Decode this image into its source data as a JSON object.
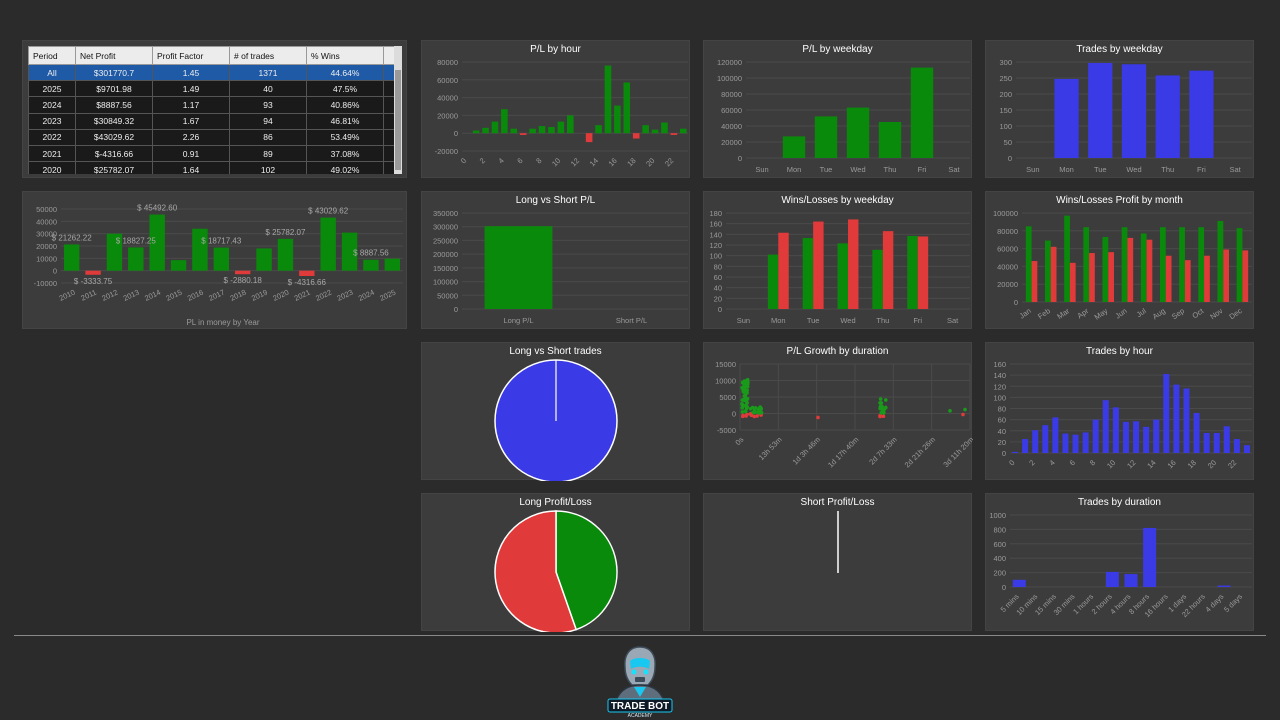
{
  "colors": {
    "green": "#0a8a0a",
    "red": "#e03a3a",
    "blue": "#3a3ae6",
    "bg": "#2b2b2b",
    "panel": "#3c3c3c"
  },
  "table": {
    "headers": [
      "Period",
      "Net Profit",
      "Profit Factor",
      "# of trades",
      "% Wins"
    ],
    "rows": [
      [
        "All",
        "$301770.7",
        "1.45",
        "1371",
        "44.64%"
      ],
      [
        "2025",
        "$9701.98",
        "1.49",
        "40",
        "47.5%"
      ],
      [
        "2024",
        "$8887.56",
        "1.17",
        "93",
        "40.86%"
      ],
      [
        "2023",
        "$30849.32",
        "1.67",
        "94",
        "46.81%"
      ],
      [
        "2022",
        "$43029.62",
        "2.26",
        "86",
        "53.49%"
      ],
      [
        "2021",
        "$-4316.66",
        "0.91",
        "89",
        "37.08%"
      ],
      [
        "2020",
        "$25782.07",
        "1.64",
        "102",
        "49.02%"
      ]
    ]
  },
  "logo": {
    "text": "TRADE BOT",
    "sub": "ACADEMY"
  },
  "chart_data": [
    {
      "id": "pl_year",
      "type": "bar",
      "title": "",
      "xlabel": "PL in money by Year",
      "categories": [
        "2010",
        "2011",
        "2012",
        "2013",
        "2014",
        "2015",
        "2016",
        "2017",
        "2018",
        "2019",
        "2020",
        "2021",
        "2022",
        "2023",
        "2024",
        "2025"
      ],
      "values": [
        21262.22,
        -3333.75,
        30000,
        18827.25,
        45492.6,
        8500,
        34000,
        18717.43,
        -2880.18,
        18000,
        25782.07,
        -4316.66,
        43029.62,
        30849.32,
        8887.56,
        9701.98
      ],
      "yticks": [
        50000,
        40000,
        30000,
        20000,
        10000,
        0,
        -10000
      ],
      "ylim": [
        -10000,
        50000
      ],
      "labels": [
        {
          "i": 0,
          "text": "$ 21262.22"
        },
        {
          "i": 1,
          "text": "$ -3333.75"
        },
        {
          "i": 3,
          "text": "$ 18827.25"
        },
        {
          "i": 4,
          "text": "$ 45492.60"
        },
        {
          "i": 7,
          "text": "$ 18717.43"
        },
        {
          "i": 8,
          "text": "$ -2880.18"
        },
        {
          "i": 10,
          "text": "$ 25782.07"
        },
        {
          "i": 11,
          "text": "$ -4316.66"
        },
        {
          "i": 12,
          "text": "$ 43029.62"
        },
        {
          "i": 14,
          "text": "$ 8887.56"
        }
      ]
    },
    {
      "id": "pl_hour",
      "type": "bar",
      "title": "P/L by hour",
      "categories": [
        "0",
        "1",
        "2",
        "3",
        "4",
        "5",
        "6",
        "7",
        "8",
        "9",
        "10",
        "11",
        "12",
        "13",
        "14",
        "15",
        "16",
        "17",
        "18",
        "19",
        "20",
        "21",
        "22",
        "23"
      ],
      "xticks": [
        "0",
        "2",
        "4",
        "6",
        "8",
        "10",
        "12",
        "14",
        "16",
        "18",
        "20",
        "22"
      ],
      "values": [
        0,
        3000,
        6000,
        13000,
        27000,
        5000,
        -2000,
        5000,
        8000,
        7000,
        13000,
        20000,
        0,
        -10000,
        9000,
        76000,
        31000,
        57000,
        -6000,
        9000,
        4000,
        12000,
        -2000,
        5000
      ],
      "yticks": [
        80000,
        60000,
        40000,
        20000,
        0,
        -20000
      ],
      "ylim": [
        -20000,
        80000
      ]
    },
    {
      "id": "pl_weekday",
      "type": "bar",
      "title": "P/L by weekday",
      "categories": [
        "Sun",
        "Mon",
        "Tue",
        "Wed",
        "Thu",
        "Fri",
        "Sat"
      ],
      "values": [
        0,
        27000,
        52000,
        63000,
        45000,
        113000,
        0
      ],
      "yticks": [
        120000,
        100000,
        80000,
        60000,
        40000,
        20000,
        0
      ],
      "ylim": [
        0,
        120000
      ]
    },
    {
      "id": "trades_weekday",
      "type": "bar",
      "title": "Trades by weekday",
      "categories": [
        "Sun",
        "Mon",
        "Tue",
        "Wed",
        "Thu",
        "Fri",
        "Sat"
      ],
      "values": [
        0,
        247,
        297,
        293,
        258,
        273,
        0
      ],
      "yticks": [
        300,
        250,
        200,
        150,
        100,
        50,
        0
      ],
      "ylim": [
        0,
        300
      ]
    },
    {
      "id": "long_short_pl",
      "type": "bar",
      "title": "Long vs Short P/L",
      "categories": [
        "Long P/L",
        "Short P/L"
      ],
      "values": [
        301770.7,
        0
      ],
      "yticks": [
        350000,
        300000,
        250000,
        200000,
        150000,
        100000,
        50000,
        0
      ],
      "ylim": [
        0,
        350000
      ]
    },
    {
      "id": "wl_weekday",
      "type": "bar",
      "title": "Wins/Losses by weekday",
      "categories": [
        "Sun",
        "Mon",
        "Tue",
        "Wed",
        "Thu",
        "Fri",
        "Sat"
      ],
      "series": [
        {
          "values": [
            0,
            102,
            133,
            123,
            111,
            137,
            0
          ]
        },
        {
          "values": [
            0,
            143,
            164,
            168,
            146,
            136,
            0
          ]
        }
      ],
      "yticks": [
        180,
        160,
        140,
        120,
        100,
        80,
        60,
        40,
        20,
        0
      ],
      "ylim": [
        0,
        180
      ]
    },
    {
      "id": "wl_month",
      "type": "bar",
      "title": "Wins/Losses Profit by month",
      "categories": [
        "Jan",
        "Feb",
        "Mar",
        "Apr",
        "May",
        "Jun",
        "Jul",
        "Aug",
        "Sep",
        "Oct",
        "Nov",
        "Dec"
      ],
      "series": [
        {
          "values": [
            85000,
            69000,
            97000,
            84000,
            73000,
            84000,
            77000,
            84000,
            84000,
            84000,
            91000,
            83000
          ]
        },
        {
          "values": [
            46000,
            62000,
            44000,
            55000,
            56000,
            72000,
            70000,
            52000,
            47000,
            52000,
            59000,
            58000
          ]
        }
      ],
      "yticks": [
        100000,
        80000,
        60000,
        40000,
        20000,
        0
      ],
      "ylim": [
        0,
        100000
      ]
    },
    {
      "id": "long_short_trades",
      "type": "pie",
      "title": "Long vs Short trades",
      "slices": [
        {
          "label": "Long",
          "value": 1371
        },
        {
          "label": "Short",
          "value": 0
        }
      ]
    },
    {
      "id": "pl_duration",
      "type": "scatter",
      "title": "P/L Growth by duration",
      "xticks": [
        "0s",
        "13h 53m",
        "1d 3h 46m",
        "1d 17h 40m",
        "2d 7h 33m",
        "2d 21h 26m",
        "3d 11h 20m"
      ],
      "yticks": [
        15000,
        10000,
        5000,
        0,
        -5000
      ],
      "ylim": [
        -5000,
        15000
      ]
    },
    {
      "id": "trades_hour",
      "type": "bar",
      "title": "Trades by hour",
      "categories": [
        "0",
        "1",
        "2",
        "3",
        "4",
        "5",
        "6",
        "7",
        "8",
        "9",
        "10",
        "11",
        "12",
        "13",
        "14",
        "15",
        "16",
        "17",
        "18",
        "19",
        "20",
        "21",
        "22",
        "23"
      ],
      "xticks": [
        "0",
        "2",
        "4",
        "6",
        "8",
        "10",
        "12",
        "14",
        "16",
        "18",
        "20",
        "22"
      ],
      "values": [
        2,
        25,
        41,
        50,
        64,
        35,
        33,
        37,
        60,
        95,
        82,
        56,
        57,
        47,
        60,
        142,
        123,
        116,
        72,
        36,
        36,
        48,
        25,
        14
      ],
      "yticks": [
        160,
        140,
        120,
        100,
        80,
        60,
        40,
        20,
        0
      ],
      "ylim": [
        0,
        160
      ]
    },
    {
      "id": "long_pl",
      "type": "pie",
      "title": "Long Profit/Loss",
      "slices": [
        {
          "label": "Profit",
          "value": 44.64
        },
        {
          "label": "Loss",
          "value": 55.36
        }
      ]
    },
    {
      "id": "short_pl",
      "type": "pie",
      "title": "Short Profit/Loss",
      "slices": []
    },
    {
      "id": "trades_duration",
      "type": "bar",
      "title": "Trades by duration",
      "categories": [
        "5 mins",
        "10 mins",
        "15 mins",
        "30 mins",
        "1 hours",
        "2 hours",
        "4 hours",
        "8 hours",
        "16 hours",
        "1 days",
        "22 hours",
        "4 days",
        "5 days"
      ],
      "values": [
        100,
        0,
        0,
        0,
        0,
        210,
        180,
        820,
        0,
        0,
        0,
        20,
        0
      ],
      "yticks": [
        1000,
        800,
        600,
        400,
        200,
        0
      ],
      "ylim": [
        0,
        1000
      ]
    }
  ]
}
